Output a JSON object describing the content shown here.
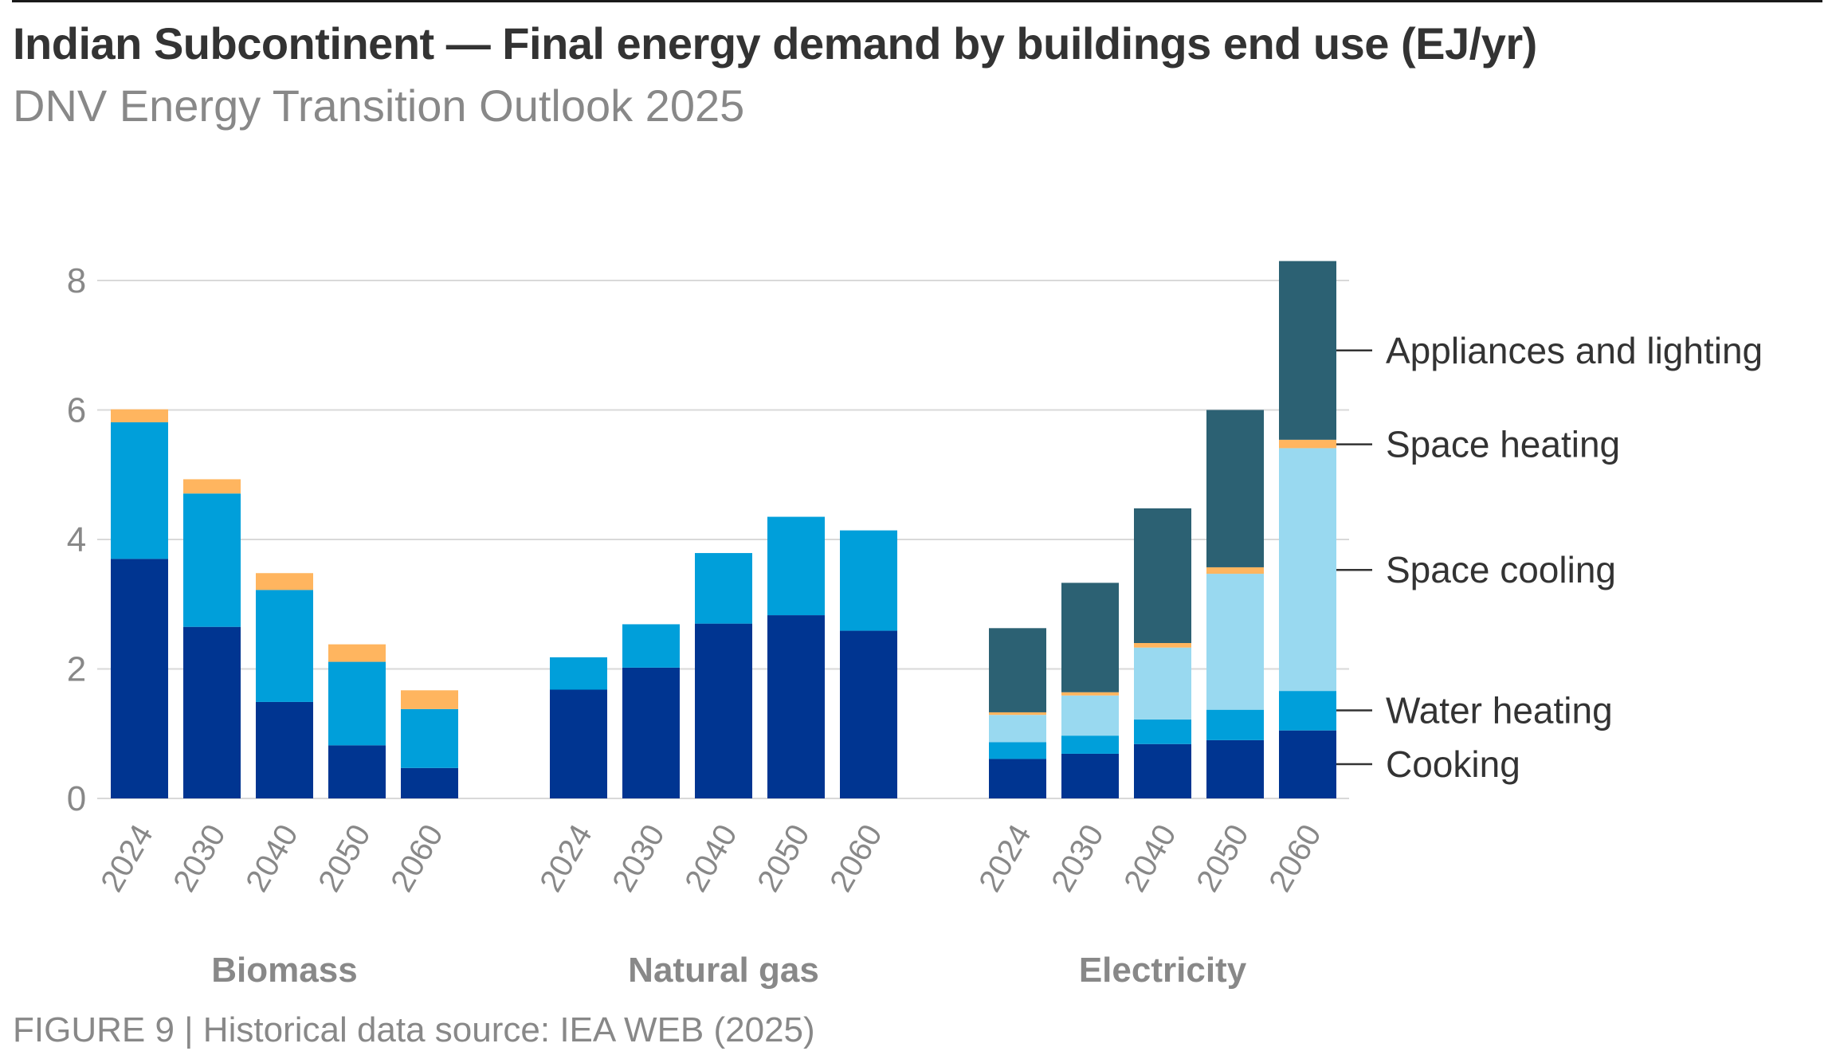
{
  "header": {
    "title": "Indian Subcontinent — Final energy demand by buildings end use (EJ/yr)",
    "subtitle": "DNV Energy Transition Outlook 2025"
  },
  "footer": {
    "caption": "FIGURE 9 | Historical data source: IEA WEB (2025)"
  },
  "chart_data": {
    "type": "bar",
    "stacked": true,
    "title": "Indian Subcontinent — Final energy demand by buildings end use (EJ/yr)",
    "subtitle": "DNV Energy Transition Outlook 2025",
    "xlabel": "",
    "ylabel": "EJ/yr",
    "ylim": [
      0,
      8
    ],
    "yticks": [
      0,
      2,
      4,
      6,
      8
    ],
    "grid": true,
    "legend_placement": "right (direct labels)",
    "groups": [
      {
        "name": "Biomass",
        "categories": [
          "2024",
          "2030",
          "2040",
          "2050",
          "2060"
        ],
        "series": [
          {
            "name": "Cooking",
            "values": [
              3.7,
              2.65,
              1.49,
              0.82,
              0.47
            ]
          },
          {
            "name": "Water heating",
            "values": [
              2.11,
              2.06,
              1.73,
              1.29,
              0.91
            ]
          },
          {
            "name": "Space cooling",
            "values": [
              0,
              0,
              0,
              0,
              0
            ]
          },
          {
            "name": "Space heating",
            "values": [
              0.2,
              0.22,
              0.26,
              0.27,
              0.29
            ]
          },
          {
            "name": "Appliances and lighting",
            "values": [
              0,
              0,
              0,
              0,
              0
            ]
          }
        ]
      },
      {
        "name": "Natural gas",
        "categories": [
          "2024",
          "2030",
          "2040",
          "2050",
          "2060"
        ],
        "series": [
          {
            "name": "Cooking",
            "values": [
              1.68,
              2.02,
              2.7,
              2.83,
              2.59
            ]
          },
          {
            "name": "Water heating",
            "values": [
              0.5,
              0.67,
              1.09,
              1.52,
              1.55
            ]
          },
          {
            "name": "Space cooling",
            "values": [
              0,
              0,
              0,
              0,
              0
            ]
          },
          {
            "name": "Space heating",
            "values": [
              0,
              0,
              0,
              0,
              0
            ]
          },
          {
            "name": "Appliances and lighting",
            "values": [
              0,
              0,
              0,
              0,
              0
            ]
          }
        ]
      },
      {
        "name": "Electricity",
        "categories": [
          "2024",
          "2030",
          "2040",
          "2050",
          "2060"
        ],
        "series": [
          {
            "name": "Cooking",
            "values": [
              0.61,
              0.69,
              0.84,
              0.9,
              1.05
            ]
          },
          {
            "name": "Water heating",
            "values": [
              0.26,
              0.28,
              0.38,
              0.47,
              0.61
            ]
          },
          {
            "name": "Space cooling",
            "values": [
              0.42,
              0.62,
              1.11,
              2.1,
              3.75
            ]
          },
          {
            "name": "Space heating",
            "values": [
              0.04,
              0.05,
              0.07,
              0.1,
              0.13
            ]
          },
          {
            "name": "Appliances and lighting",
            "values": [
              1.3,
              1.69,
              2.08,
              2.43,
              2.76
            ]
          }
        ]
      }
    ],
    "series_colors": {
      "Cooking": "#003591",
      "Water heating": "#009FDA",
      "Space cooling": "#99D9F0",
      "Space heating": "#FFB55F",
      "Appliances and lighting": "#2C6173"
    },
    "series_labels": [
      {
        "name": "Appliances and lighting",
        "anchor_value": 6.92
      },
      {
        "name": "Space heating",
        "anchor_value": 5.47
      },
      {
        "name": "Space cooling",
        "anchor_value": 3.53
      },
      {
        "name": "Water heating",
        "anchor_value": 1.36
      },
      {
        "name": "Cooking",
        "anchor_value": 0.53
      }
    ]
  }
}
